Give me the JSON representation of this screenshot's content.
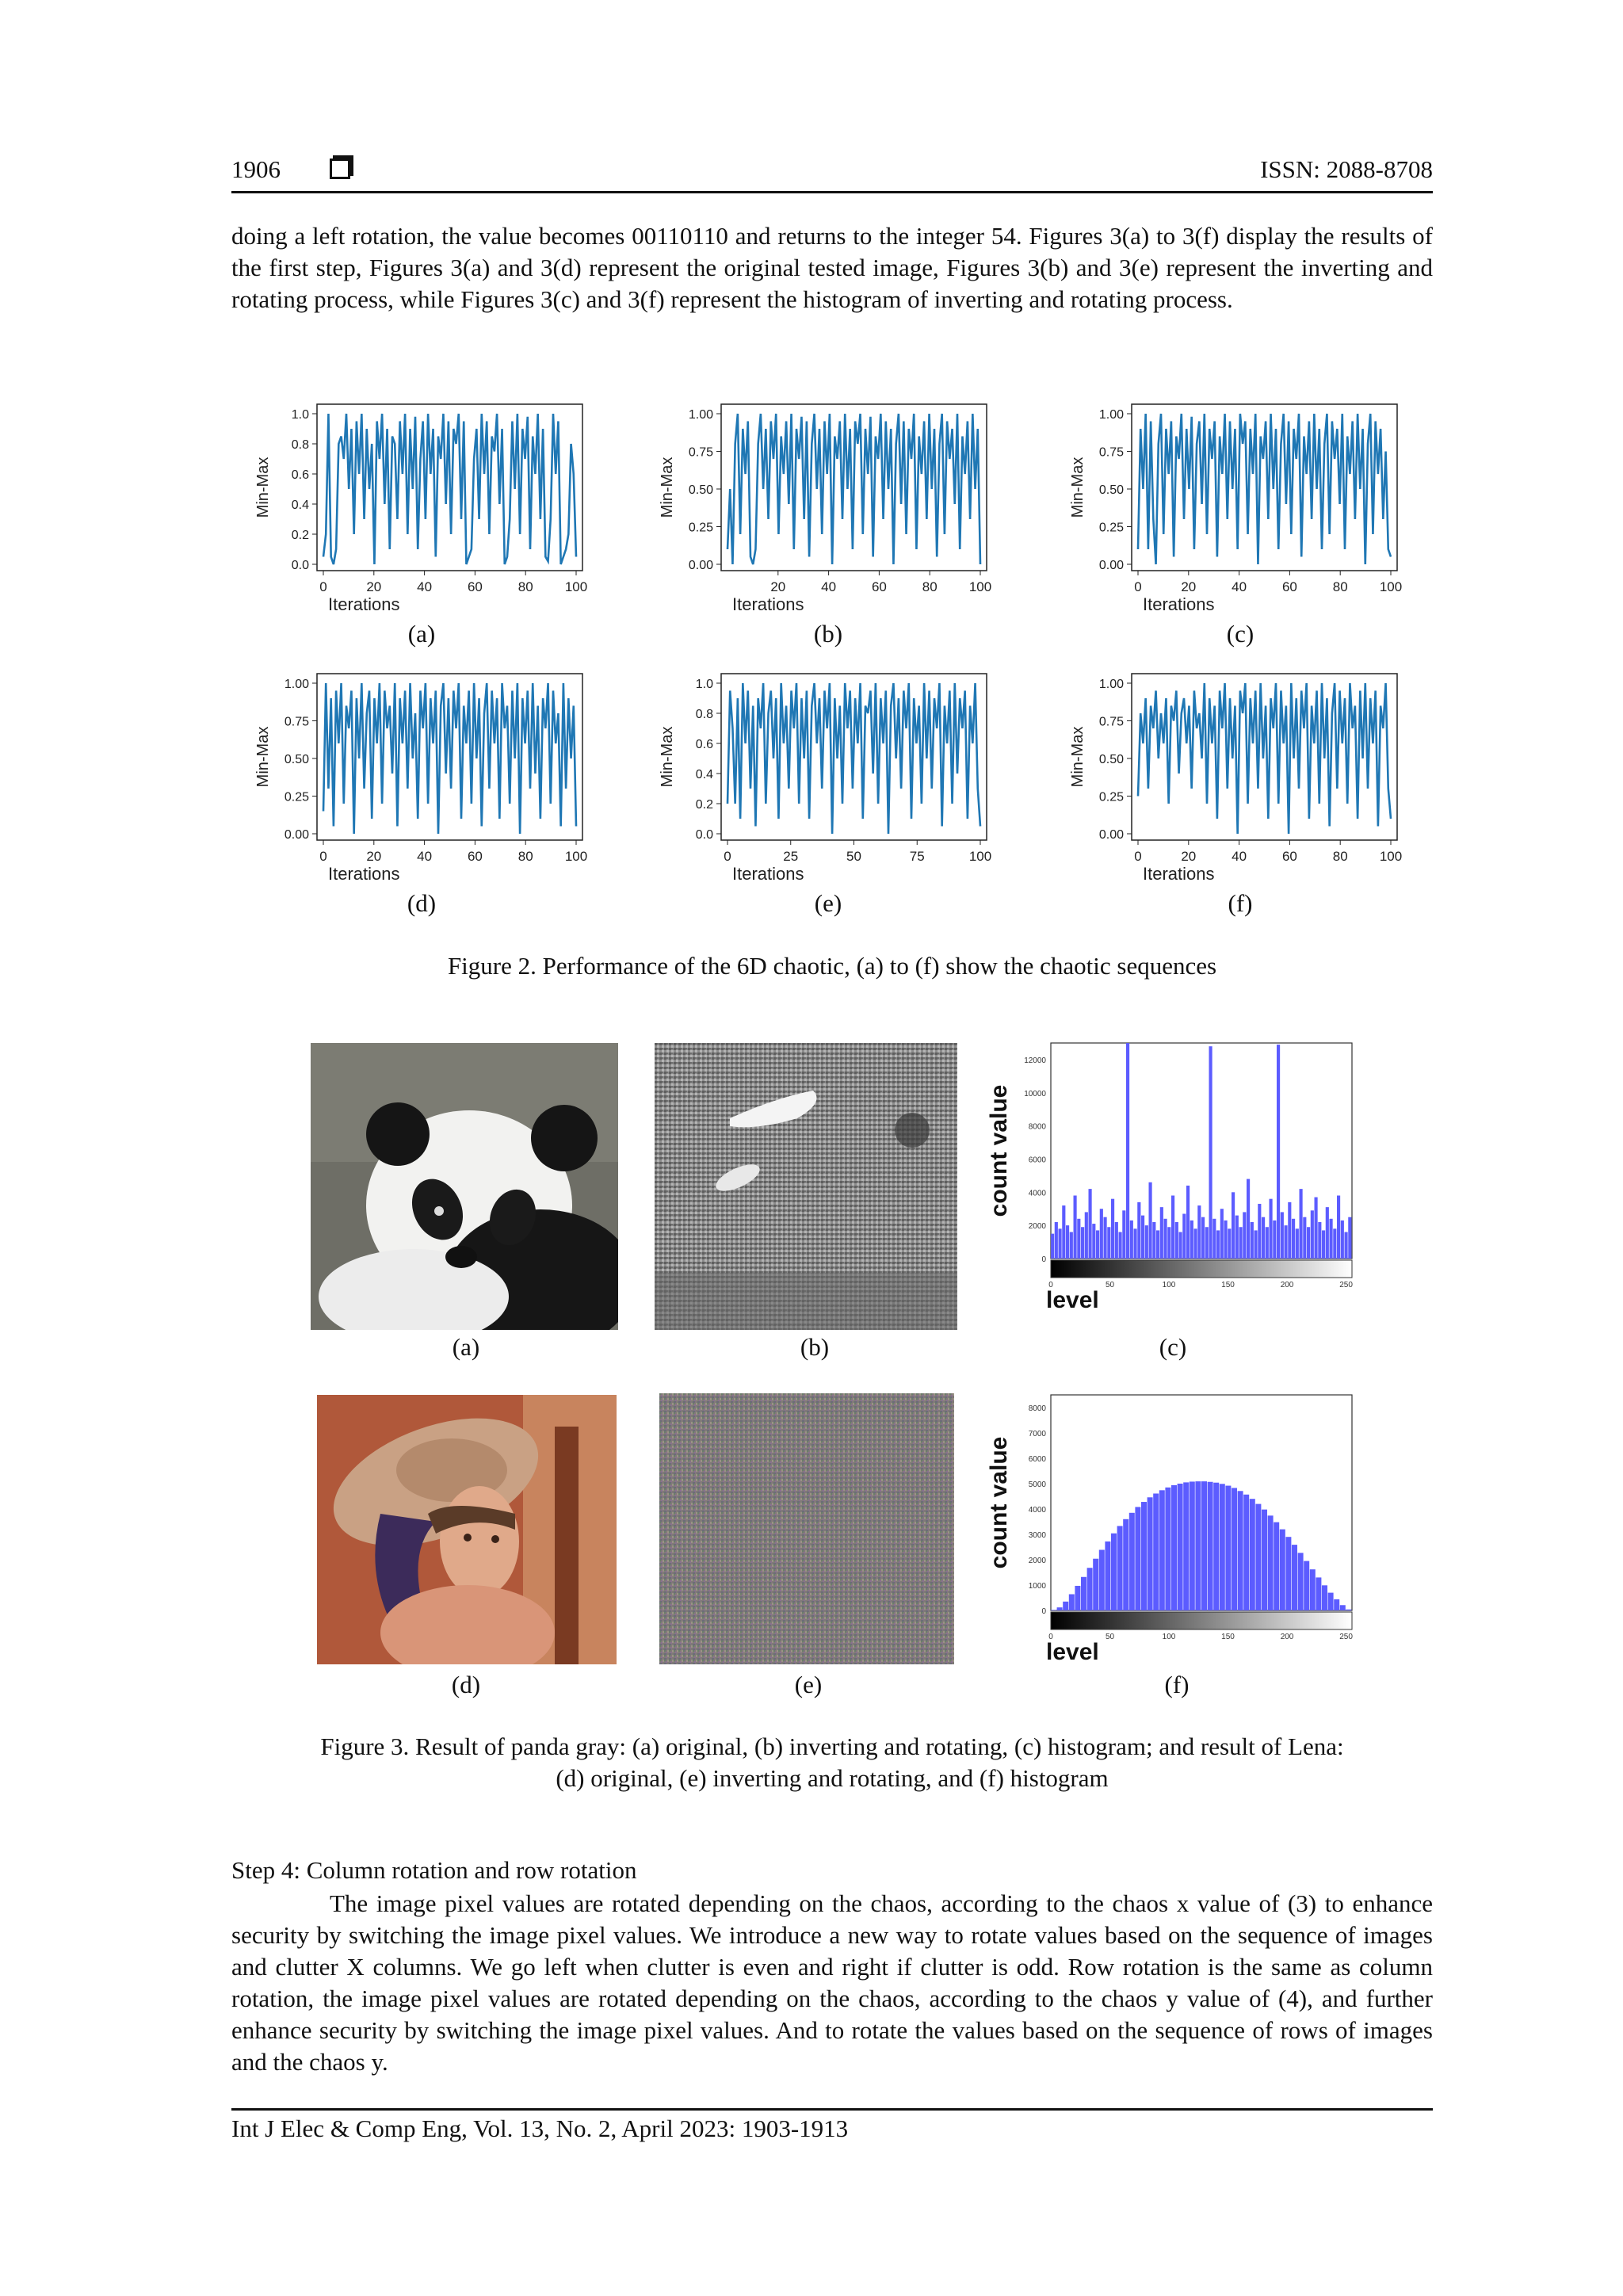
{
  "header": {
    "page_number": "1906",
    "issn": "ISSN: 2088-8708"
  },
  "intro_paragraph": "doing a left rotation, the value becomes 00110110 and returns to the integer 54. Figures 3(a) to 3(f) display the results of the first step, Figures 3(a) and 3(d) represent the original tested image, Figures 3(b) and 3(e) represent the inverting and rotating process, while Figures 3(c) and 3(f) represent the histogram of inverting and rotating process.",
  "figure2": {
    "caption": "Figure 2. Performance of the 6D chaotic, (a) to (f) show the chaotic sequences",
    "sublabels": [
      "(a)",
      "(b)",
      "(c)",
      "(d)",
      "(e)",
      "(f)"
    ]
  },
  "figure3": {
    "caption_line1": "Figure 3. Result of panda gray: (a) original, (b) inverting and rotating, (c) histogram; and result of Lena:",
    "caption_line2": "(d) original, (e) inverting and rotating, and (f) histogram",
    "sublabels": [
      "(a)",
      "(b)",
      "(c)",
      "(d)",
      "(e)",
      "(f)"
    ]
  },
  "step4": {
    "heading": "Step 4: Column rotation and row rotation",
    "body": "The image pixel values are rotated depending on the chaos, according to the chaos x value of (3) to enhance security by switching the image pixel values. We introduce a new way to rotate values based on the sequence of images and clutter X columns. We go left when clutter is even and right if clutter is odd. Row rotation is the same as column rotation, the image pixel values are rotated depending on the chaos, according to the chaos y value of (4), and further enhance security by switching the image pixel values. And to rotate the values based on the sequence of rows of images and the chaos y."
  },
  "footer": {
    "citation": "Int J Elec & Comp Eng, Vol. 13, No. 2, April 2023: 1903-1913"
  },
  "colors": {
    "line": "#1f77b4",
    "histogram": "#5c5cff"
  },
  "chart_data": [
    {
      "type": "line",
      "panel": "(a)",
      "xlabel": "Iterations",
      "ylabel": "Min-Max",
      "xlim": [
        0,
        100
      ],
      "ylim": [
        0,
        1
      ],
      "xticks": [
        "0",
        "20",
        "40",
        "60",
        "80",
        "100"
      ],
      "yticks": [
        "0.0",
        "0.2",
        "0.4",
        "0.6",
        "0.8",
        "1.0"
      ],
      "series": [
        {
          "values": [
            0.05,
            0.2,
            1.0,
            0.05,
            0.0,
            0.1,
            0.8,
            0.85,
            0.7,
            1.0,
            0.5,
            0.9,
            0.2,
            0.95,
            0.6,
            1.0,
            0.3,
            0.9,
            0.5,
            0.8,
            0.0,
            0.95,
            0.7,
            1.0,
            0.4,
            0.9,
            0.1,
            0.85,
            0.8,
            0.3,
            0.95,
            0.6,
            1.0,
            0.2,
            0.9,
            0.5,
            0.98,
            0.1,
            0.7,
            0.95,
            0.3,
            1.0,
            0.6,
            0.9,
            0.05,
            0.85,
            0.7,
            1.0,
            0.4,
            0.95,
            0.2,
            0.9,
            0.8,
            1.0,
            0.3,
            0.95,
            0.0,
            0.05,
            0.1,
            0.7,
            0.9,
            0.3,
            1.0,
            0.6,
            0.95,
            0.2,
            0.85,
            0.75,
            1.0,
            0.4,
            0.9,
            0.0,
            0.05,
            0.3,
            0.95,
            0.5,
            1.0,
            0.2,
            0.9,
            0.7,
            0.98,
            0.1,
            0.85,
            0.6,
            1.0,
            0.3,
            0.9,
            0.05,
            0.02,
            0.3,
            1.0,
            0.6,
            0.95,
            0.0,
            0.05,
            0.1,
            0.2,
            0.8,
            0.6,
            0.05
          ]
        }
      ]
    },
    {
      "type": "line",
      "panel": "(b)",
      "xlabel": "Iterations",
      "ylabel": "Min-Max",
      "xlim": [
        0,
        100
      ],
      "ylim": [
        0,
        1
      ],
      "xticks": [
        "20",
        "40",
        "60",
        "80",
        "100"
      ],
      "yticks": [
        "0.00",
        "0.25",
        "0.50",
        "0.75",
        "1.00"
      ],
      "series": [
        {
          "values": [
            0.1,
            0.5,
            0.0,
            0.8,
            1.0,
            0.2,
            0.9,
            0.6,
            0.95,
            0.05,
            0.0,
            0.1,
            0.8,
            1.0,
            0.5,
            0.9,
            0.3,
            0.95,
            0.7,
            1.0,
            0.2,
            0.85,
            0.6,
            0.95,
            0.4,
            1.0,
            0.1,
            0.9,
            0.7,
            0.98,
            0.3,
            0.95,
            0.05,
            0.8,
            1.0,
            0.5,
            0.9,
            0.2,
            0.95,
            0.6,
            1.0,
            0.0,
            0.85,
            0.7,
            0.95,
            0.3,
            1.0,
            0.5,
            0.9,
            0.1,
            0.95,
            0.8,
            1.0,
            0.2,
            0.9,
            0.6,
            0.98,
            0.05,
            0.85,
            0.7,
            1.0,
            0.3,
            0.95,
            0.5,
            0.9,
            0.0,
            0.8,
            1.0,
            0.4,
            0.95,
            0.2,
            0.9,
            0.7,
            1.0,
            0.1,
            0.85,
            0.6,
            0.95,
            0.3,
            1.0,
            0.5,
            0.9,
            0.05,
            0.8,
            1.0,
            0.2,
            0.95,
            0.7,
            0.9,
            0.4,
            1.0,
            0.1,
            0.85,
            0.6,
            0.95,
            0.3,
            1.0,
            0.5,
            0.9,
            0.0
          ]
        }
      ]
    },
    {
      "type": "line",
      "panel": "(c)",
      "xlabel": "Iterations",
      "ylabel": "Min-Max",
      "xlim": [
        0,
        100
      ],
      "ylim": [
        0,
        1
      ],
      "xticks": [
        "0",
        "20",
        "40",
        "60",
        "80",
        "100"
      ],
      "yticks": [
        "0.00",
        "0.25",
        "0.50",
        "0.75",
        "1.00"
      ],
      "series": [
        {
          "values": [
            0.1,
            0.9,
            0.5,
            1.0,
            0.1,
            0.95,
            0.3,
            0.0,
            0.8,
            1.0,
            0.2,
            0.9,
            0.6,
            0.95,
            0.05,
            0.85,
            0.7,
            1.0,
            0.3,
            0.9,
            0.5,
            0.98,
            0.1,
            0.8,
            0.95,
            0.4,
            1.0,
            0.2,
            0.9,
            0.7,
            0.95,
            0.05,
            0.85,
            0.6,
            1.0,
            0.3,
            0.95,
            0.5,
            0.9,
            0.1,
            1.0,
            0.8,
            0.95,
            0.2,
            0.9,
            0.6,
            1.0,
            0.0,
            0.85,
            0.7,
            0.95,
            0.3,
            1.0,
            0.5,
            0.9,
            0.1,
            0.8,
            1.0,
            0.4,
            0.95,
            0.2,
            0.9,
            0.7,
            1.0,
            0.05,
            0.85,
            0.6,
            0.95,
            0.3,
            1.0,
            0.5,
            0.9,
            0.1,
            0.8,
            1.0,
            0.2,
            0.95,
            0.7,
            0.9,
            0.4,
            1.0,
            0.1,
            0.85,
            0.6,
            0.95,
            0.3,
            1.0,
            0.5,
            0.9,
            0.0,
            0.8,
            1.0,
            0.2,
            0.95,
            0.6,
            0.9,
            0.3,
            0.75,
            0.1,
            0.05
          ]
        }
      ]
    },
    {
      "type": "line",
      "panel": "(d)",
      "xlabel": "Iterations",
      "ylabel": "Min-Max",
      "xlim": [
        0,
        100
      ],
      "ylim": [
        0,
        1
      ],
      "xticks": [
        "0",
        "20",
        "40",
        "60",
        "80",
        "100"
      ],
      "yticks": [
        "0.00",
        "0.25",
        "0.50",
        "0.75",
        "1.00"
      ],
      "series": [
        {
          "values": [
            0.15,
            1.0,
            0.3,
            0.9,
            0.05,
            0.95,
            0.6,
            1.0,
            0.2,
            0.85,
            0.7,
            0.95,
            0.0,
            0.9,
            0.5,
            1.0,
            0.3,
            0.8,
            0.95,
            0.1,
            0.9,
            0.6,
            1.0,
            0.2,
            0.95,
            0.7,
            0.85,
            0.4,
            1.0,
            0.05,
            0.9,
            0.6,
            0.95,
            0.3,
            1.0,
            0.5,
            0.8,
            0.1,
            0.95,
            0.7,
            1.0,
            0.2,
            0.9,
            0.6,
            0.95,
            0.0,
            0.85,
            1.0,
            0.4,
            0.9,
            0.3,
            0.95,
            0.7,
            1.0,
            0.1,
            0.85,
            0.6,
            0.95,
            0.2,
            1.0,
            0.5,
            0.9,
            0.05,
            0.8,
            1.0,
            0.3,
            0.95,
            0.6,
            0.9,
            0.1,
            1.0,
            0.7,
            0.85,
            0.2,
            0.95,
            0.5,
            1.0,
            0.0,
            0.9,
            0.6,
            0.95,
            0.3,
            1.0,
            0.4,
            0.85,
            0.1,
            0.9,
            0.7,
            1.0,
            0.2,
            0.95,
            0.6,
            0.8,
            0.05,
            1.0,
            0.3,
            0.9,
            0.5,
            0.85,
            0.05
          ]
        }
      ]
    },
    {
      "type": "line",
      "panel": "(e)",
      "xlabel": "Iterations",
      "ylabel": "Min-Max",
      "xlim": [
        0,
        100
      ],
      "ylim": [
        0,
        1
      ],
      "xticks": [
        "0",
        "25",
        "50",
        "75",
        "100"
      ],
      "yticks": [
        "0.0",
        "0.2",
        "0.4",
        "0.6",
        "0.8",
        "1.0"
      ],
      "series": [
        {
          "values": [
            0.2,
            0.95,
            0.7,
            0.2,
            0.9,
            0.1,
            1.0,
            0.6,
            0.95,
            0.3,
            0.85,
            0.05,
            0.9,
            0.7,
            1.0,
            0.2,
            0.8,
            0.95,
            0.5,
            0.9,
            0.1,
            1.0,
            0.6,
            0.85,
            0.3,
            0.95,
            0.7,
            1.0,
            0.2,
            0.9,
            0.5,
            0.95,
            0.1,
            0.85,
            1.0,
            0.6,
            0.9,
            0.3,
            0.95,
            0.7,
            1.0,
            0.0,
            0.9,
            0.5,
            0.85,
            0.2,
            1.0,
            0.7,
            0.95,
            0.3,
            0.9,
            0.6,
            1.0,
            0.1,
            0.85,
            0.8,
            0.95,
            0.4,
            1.0,
            0.2,
            0.9,
            0.6,
            0.95,
            0.0,
            0.85,
            1.0,
            0.5,
            0.9,
            0.3,
            0.95,
            0.7,
            1.0,
            0.1,
            0.9,
            0.6,
            0.85,
            0.2,
            1.0,
            0.5,
            0.95,
            0.3,
            0.9,
            0.7,
            1.0,
            0.05,
            0.85,
            0.6,
            0.95,
            0.2,
            1.0,
            0.4,
            0.9,
            0.7,
            0.95,
            0.1,
            0.85,
            0.6,
            1.0,
            0.3,
            0.05
          ]
        }
      ]
    },
    {
      "type": "line",
      "panel": "(f)",
      "xlabel": "Iterations",
      "ylabel": "Min-Max",
      "xlim": [
        0,
        100
      ],
      "ylim": [
        0,
        1
      ],
      "xticks": [
        "0",
        "20",
        "40",
        "60",
        "80",
        "100"
      ],
      "yticks": [
        "0.00",
        "0.25",
        "0.50",
        "0.75",
        "1.00"
      ],
      "series": [
        {
          "values": [
            0.25,
            0.8,
            0.6,
            0.9,
            0.3,
            0.85,
            0.7,
            0.95,
            0.5,
            0.8,
            0.6,
            0.9,
            0.2,
            0.85,
            0.75,
            0.95,
            0.4,
            0.8,
            0.9,
            0.6,
            0.85,
            0.3,
            0.95,
            0.7,
            0.8,
            0.5,
            1.0,
            0.2,
            0.9,
            0.6,
            0.85,
            0.1,
            0.95,
            0.7,
            1.0,
            0.3,
            0.9,
            0.5,
            0.85,
            0.0,
            0.95,
            0.8,
            1.0,
            0.2,
            0.9,
            0.6,
            0.95,
            0.3,
            1.0,
            0.5,
            0.85,
            0.1,
            0.9,
            0.7,
            1.0,
            0.2,
            0.95,
            0.6,
            0.85,
            0.0,
            1.0,
            0.5,
            0.9,
            0.3,
            0.95,
            0.7,
            1.0,
            0.1,
            0.85,
            0.6,
            0.95,
            0.2,
            1.0,
            0.5,
            0.9,
            0.05,
            0.8,
            1.0,
            0.3,
            0.95,
            0.6,
            0.9,
            0.2,
            1.0,
            0.7,
            0.85,
            0.1,
            0.95,
            0.5,
            1.0,
            0.3,
            0.9,
            0.6,
            0.95,
            0.05,
            0.85,
            0.7,
            1.0,
            0.3,
            0.1
          ]
        }
      ]
    },
    {
      "type": "bar",
      "panel": "Figure 3(c)",
      "xlabel": "level",
      "ylabel": "count value",
      "xlim": [
        0,
        255
      ],
      "ylim": [
        0,
        13000
      ],
      "xticks": [
        "0",
        "50",
        "100",
        "150",
        "200",
        "250"
      ],
      "yticks": [
        "0",
        "2000",
        "4000",
        "6000",
        "8000",
        "10000",
        "12000"
      ],
      "series": [
        {
          "values": [
            1500,
            2200,
            1800,
            3200,
            2000,
            1600,
            3800,
            2400,
            1900,
            2800,
            4200,
            2100,
            1700,
            3000,
            2500,
            1900,
            3600,
            2200,
            1600,
            2900,
            13000,
            2300,
            1800,
            3400,
            2600,
            2000,
            4600,
            2200,
            1700,
            3100,
            2400,
            1900,
            3800,
            2200,
            1600,
            2700,
            4400,
            2300,
            1800,
            3200,
            2500,
            1900,
            12800,
            2400,
            1700,
            3000,
            2300,
            1800,
            4000,
            2600,
            1900,
            2800,
            4800,
            2200,
            1700,
            3300,
            2500,
            1900,
            3600,
            2300,
            12900,
            2800,
            2000,
            3400,
            2400,
            1800,
            4200,
            2500,
            1900,
            2900,
            3700,
            2200,
            1700,
            3100,
            2400,
            1800,
            3800,
            2300,
            1600,
            2500
          ]
        }
      ]
    },
    {
      "type": "bar",
      "panel": "Figure 3(f)",
      "xlabel": "level",
      "ylabel": "count value",
      "xlim": [
        0,
        255
      ],
      "ylim": [
        0,
        8500
      ],
      "xticks": [
        "0",
        "50",
        "100",
        "150",
        "200",
        "250"
      ],
      "yticks": [
        "0",
        "1000",
        "2000",
        "3000",
        "4000",
        "5000",
        "6000",
        "7000",
        "8000"
      ],
      "series": [
        {
          "values": [
            20,
            120,
            350,
            640,
            970,
            1320,
            1680,
            2040,
            2390,
            2720,
            3040,
            3330,
            3600,
            3850,
            4080,
            4280,
            4460,
            4610,
            4740,
            4850,
            4940,
            5000,
            5050,
            5080,
            5090,
            5090,
            5070,
            5040,
            4990,
            4920,
            4830,
            4710,
            4570,
            4400,
            4200,
            3980,
            3740,
            3480,
            3200,
            2900,
            2590,
            2270,
            1950,
            1620,
            1300,
            990,
            700,
            440,
            210,
            40
          ]
        }
      ]
    }
  ]
}
